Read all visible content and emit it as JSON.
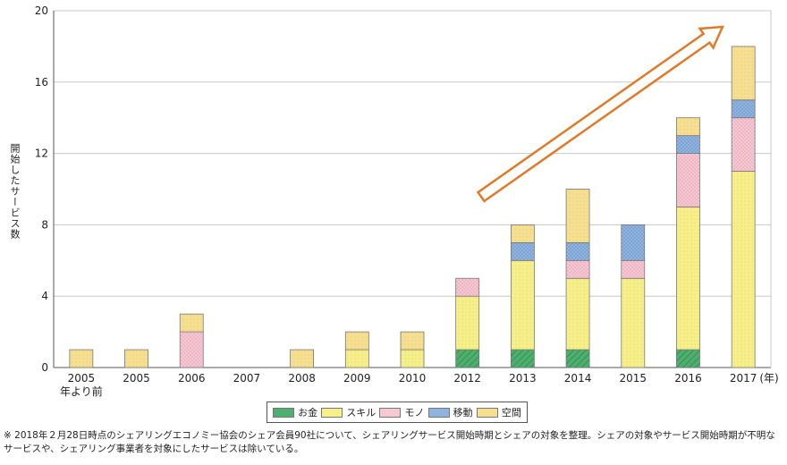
{
  "chart_data": {
    "type": "bar",
    "stacked": true,
    "ylabel": "開始したサービス数",
    "xunit": "(年)",
    "ylim": [
      0,
      20
    ],
    "yticks": [
      "0",
      "4",
      "8",
      "12",
      "16",
      "20"
    ],
    "grid": true,
    "legend_position": "bottom",
    "categories": [
      {
        "label": "2005",
        "sublabel": "年より前"
      },
      {
        "label": "2005",
        "sublabel": ""
      },
      {
        "label": "2006",
        "sublabel": ""
      },
      {
        "label": "2007",
        "sublabel": ""
      },
      {
        "label": "2008",
        "sublabel": ""
      },
      {
        "label": "2009",
        "sublabel": ""
      },
      {
        "label": "2010",
        "sublabel": ""
      },
      {
        "label": "2012",
        "sublabel": ""
      },
      {
        "label": "2013",
        "sublabel": ""
      },
      {
        "label": "2014",
        "sublabel": ""
      },
      {
        "label": "2015",
        "sublabel": ""
      },
      {
        "label": "2016",
        "sublabel": ""
      },
      {
        "label": "2017",
        "sublabel": ""
      }
    ],
    "series": [
      {
        "name": "お金",
        "color": "#4caf6e",
        "values": [
          0,
          0,
          0,
          0,
          0,
          0,
          0,
          1,
          1,
          1,
          0,
          1,
          0
        ]
      },
      {
        "name": "スキル",
        "color": "#f7f08a",
        "values": [
          0,
          0,
          0,
          0,
          0,
          1,
          1,
          3,
          5,
          4,
          5,
          8,
          11
        ]
      },
      {
        "name": "モノ",
        "color": "#f6c8d4",
        "values": [
          0,
          0,
          2,
          0,
          0,
          0,
          0,
          1,
          0,
          1,
          1,
          3,
          3
        ]
      },
      {
        "name": "移動",
        "color": "#8fb4e0",
        "values": [
          0,
          0,
          0,
          0,
          0,
          0,
          0,
          0,
          1,
          1,
          2,
          1,
          1
        ]
      },
      {
        "name": "空間",
        "color": "#f6df90",
        "values": [
          1,
          1,
          1,
          0,
          1,
          1,
          1,
          0,
          1,
          3,
          0,
          1,
          3
        ]
      }
    ],
    "annotation": {
      "type": "arrow",
      "color": "#e07a2a",
      "meaning": "increasing-trend"
    }
  },
  "footnote": "※ 2018年２月28日時点のシェアリングエコノミー協会のシェア会員90社について、シェアリングサービス開始時期とシェアの対象を整理。シェアの対象やサービス開始時期が不明なサービスや、シェアリング事業者を対象にしたサービスは除いている。"
}
